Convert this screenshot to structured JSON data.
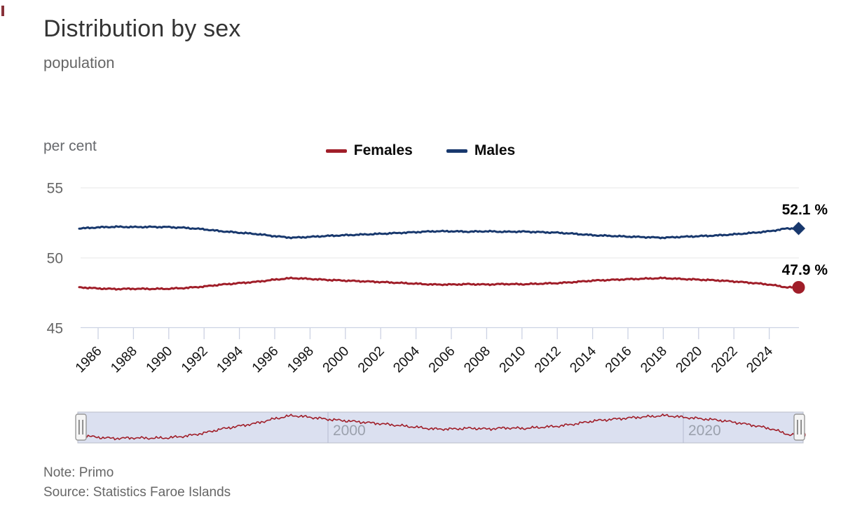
{
  "header": {
    "title": "Distribution by sex",
    "subtitle": "population"
  },
  "footer": {
    "note": "Note: Primo",
    "source": "Source: Statistics Faroe Islands"
  },
  "colors": {
    "females": "#A01E29",
    "males": "#18386D",
    "grid": "#E7E7E7",
    "axis": "#CCD2E3",
    "x_label": "#111111",
    "y_label": "#666666",
    "navigator_fill": "#DBE0F0",
    "navigator_border": "#B9BCC8",
    "navigator_grid": "#B4BAD0",
    "navigator_label": "#9BA1AD",
    "handle_fill": "#F5F5F5",
    "handle_stroke": "#999999"
  },
  "chart_data": {
    "type": "line",
    "title": "Distribution by sex",
    "subtitle": "population",
    "xlabel": "",
    "ylabel": "per cent",
    "ylim": [
      45,
      55
    ],
    "y_ticks": [
      55,
      50,
      45
    ],
    "x_ticks": [
      1986,
      1988,
      1990,
      1992,
      1994,
      1996,
      1998,
      2000,
      2002,
      2004,
      2006,
      2008,
      2010,
      2012,
      2014,
      2016,
      2018,
      2020,
      2022,
      2024
    ],
    "x_range": [
      1985,
      2025.7
    ],
    "grid": true,
    "legend_position": "top-center",
    "x": [
      1985,
      1986,
      1987,
      1988,
      1989,
      1990,
      1991,
      1992,
      1993,
      1994,
      1995,
      1996,
      1997,
      1998,
      1999,
      2000,
      2001,
      2002,
      2003,
      2004,
      2005,
      2006,
      2007,
      2008,
      2009,
      2010,
      2011,
      2012,
      2013,
      2014,
      2015,
      2016,
      2017,
      2018,
      2019,
      2020,
      2021,
      2022,
      2023,
      2024,
      2025
    ],
    "series": [
      {
        "name": "Females",
        "marker": "circle",
        "end_label": "47.9 %",
        "end_value": 47.9,
        "values": [
          47.9,
          47.82,
          47.78,
          47.8,
          47.79,
          47.8,
          47.86,
          47.96,
          48.1,
          48.2,
          48.3,
          48.45,
          48.56,
          48.5,
          48.43,
          48.38,
          48.33,
          48.28,
          48.22,
          48.16,
          48.1,
          48.1,
          48.13,
          48.1,
          48.14,
          48.12,
          48.16,
          48.2,
          48.28,
          48.38,
          48.43,
          48.48,
          48.52,
          48.56,
          48.5,
          48.45,
          48.4,
          48.32,
          48.22,
          48.1,
          47.9
        ]
      },
      {
        "name": "Males",
        "marker": "diamond",
        "end_label": "52.1 %",
        "end_value": 52.1,
        "values": [
          52.1,
          52.18,
          52.22,
          52.2,
          52.21,
          52.2,
          52.14,
          52.04,
          51.9,
          51.8,
          51.7,
          51.55,
          51.44,
          51.5,
          51.57,
          51.62,
          51.67,
          51.72,
          51.78,
          51.84,
          51.9,
          51.9,
          51.87,
          51.9,
          51.86,
          51.88,
          51.84,
          51.8,
          51.72,
          51.62,
          51.57,
          51.52,
          51.48,
          51.44,
          51.5,
          51.55,
          51.6,
          51.68,
          51.78,
          51.9,
          52.1
        ]
      }
    ],
    "navigator": {
      "ticks": [
        "2000",
        "2020"
      ],
      "series_shown": "Females"
    }
  }
}
